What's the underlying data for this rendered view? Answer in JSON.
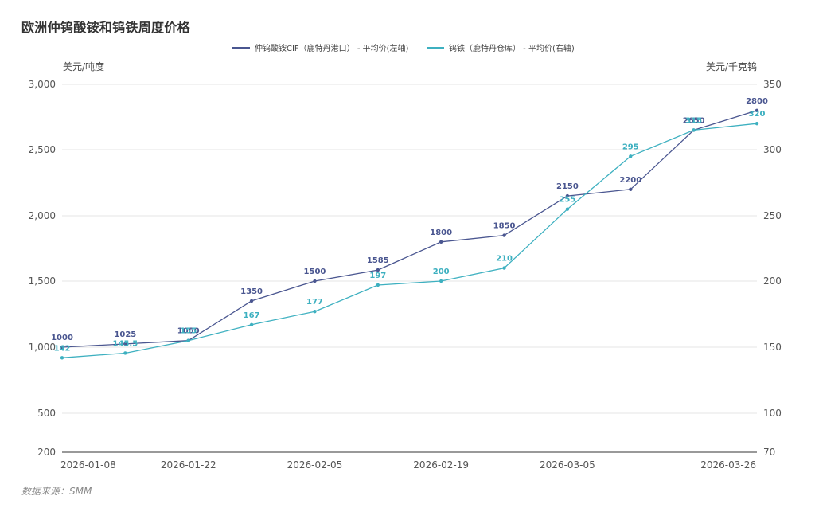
{
  "title": "欧洲仲钨酸铵和钨铁周度价格",
  "source": "数据来源：SMM",
  "colors": {
    "s1": "#4a5690",
    "s2": "#3db0c0",
    "grid": "#e6e6e6",
    "axis": "#333333"
  },
  "chart_data": {
    "type": "line",
    "title": "欧洲仲钨酸铵和钨铁周度价格",
    "x": [
      "2026-01-08",
      "2026-01-15",
      "2026-01-22",
      "2026-01-29",
      "2026-02-05",
      "2026-02-12",
      "2026-02-19",
      "2026-02-26",
      "2026-03-05",
      "2026-03-12",
      "2026-03-19",
      "2026-03-26"
    ],
    "x_tick_labels": [
      "2026-01-08",
      "2026-01-22",
      "2026-02-05",
      "2026-02-19",
      "2026-03-05",
      "2026-03-26"
    ],
    "left_axis": {
      "label": "美元/吨度",
      "ticks": [
        "200",
        "500",
        "1,000",
        "1,500",
        "2,000",
        "2,500",
        "3,000"
      ],
      "tick_values": [
        200,
        500,
        1000,
        1500,
        2000,
        2500,
        3000
      ],
      "range": [
        200,
        3000
      ]
    },
    "right_axis": {
      "label": "美元/千克钨",
      "ticks": [
        "70",
        "100",
        "150",
        "200",
        "250",
        "300",
        "350"
      ],
      "tick_values": [
        70,
        100,
        150,
        200,
        250,
        300,
        350
      ],
      "range": [
        70,
        350
      ]
    },
    "series": [
      {
        "name": "仲钨酸铵CIF（鹿特丹港口） - 平均价(左轴)",
        "axis": "left",
        "values": [
          1000,
          1025,
          1050,
          1350,
          1500,
          1585,
          1800,
          1850,
          2150,
          2200,
          2650,
          2800
        ],
        "labels": [
          "1000",
          "1025",
          "1050",
          "1350",
          "1500",
          "1585",
          "1800",
          "1850",
          "2150",
          "2200",
          "2650",
          "2800"
        ]
      },
      {
        "name": "钨铁（鹿特丹仓库） - 平均价(右轴)",
        "axis": "right",
        "values": [
          142,
          145.5,
          155,
          167,
          177,
          197,
          200,
          210,
          255,
          295,
          315,
          320
        ],
        "labels": [
          "142",
          "145.5",
          "155",
          "167",
          "177",
          "197",
          "200",
          "210",
          "255",
          "295",
          "315",
          "320"
        ]
      }
    ],
    "legend_position": "top-center",
    "grid": true
  }
}
